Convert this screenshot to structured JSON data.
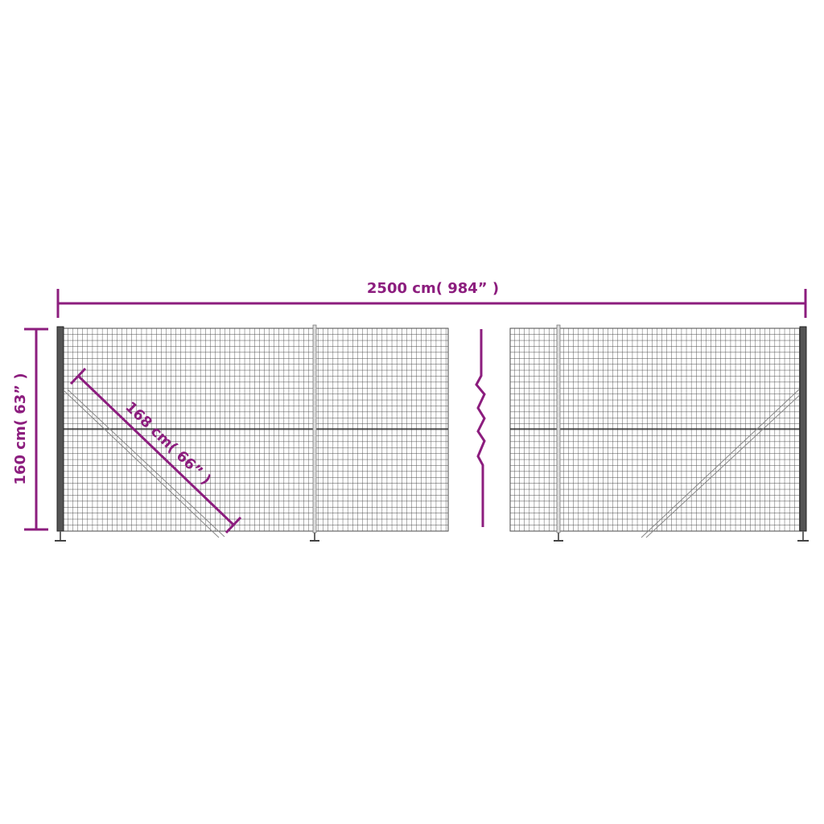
{
  "colors": {
    "dimension": "#8c1d7e",
    "mesh": "#4a4a4a",
    "post_dark": "#3a3a3a",
    "post_light": "#9a9a9a"
  },
  "dimensions": {
    "width_label": "2500 cm( 984”  )",
    "height_label": "160 cm( 63”  )",
    "diagonal_label": "168 cm( 66”  )"
  }
}
